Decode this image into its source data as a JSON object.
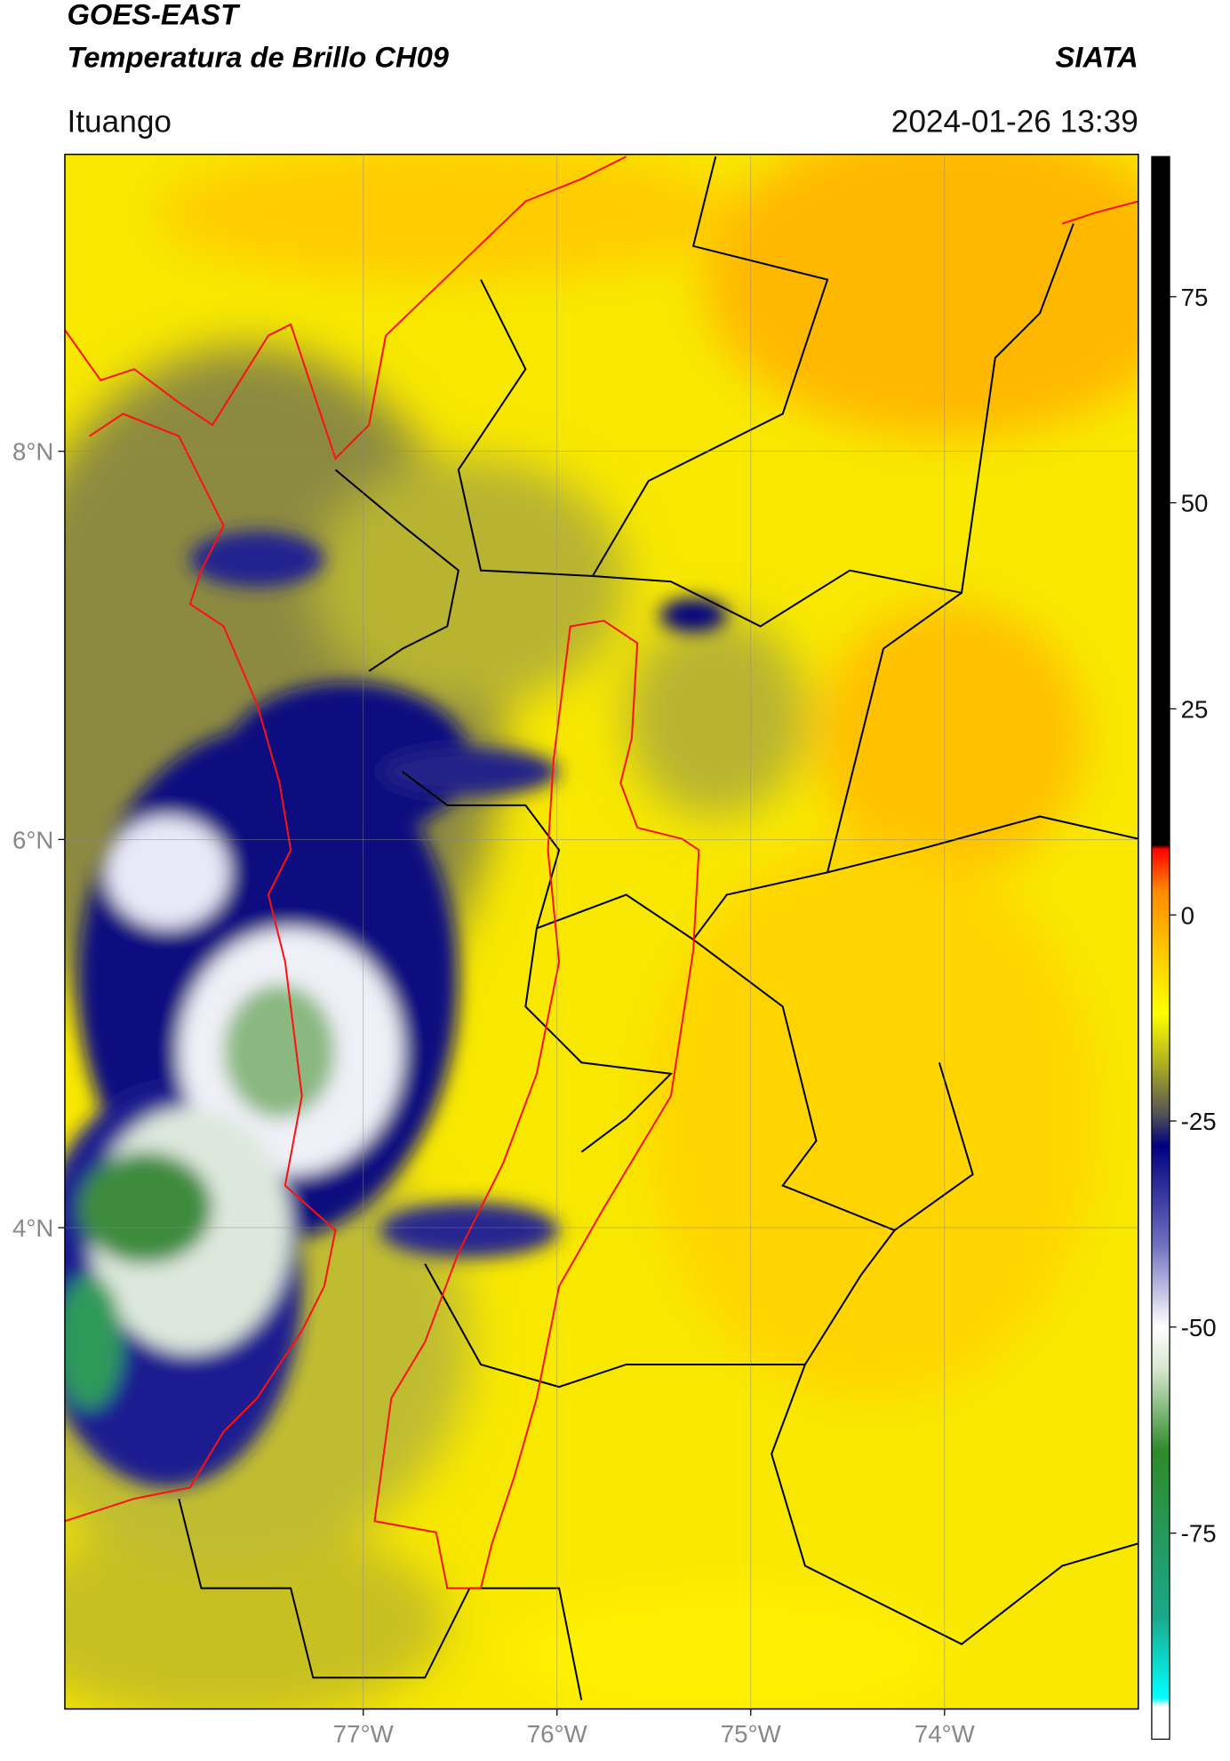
{
  "header": {
    "title": "GOES-EAST",
    "subtitle": "Temperatura de Brillo CH09",
    "source": "SIATA",
    "location": "Ituango",
    "datetime": "2024-01-26 13:39"
  },
  "map": {
    "xlim": [
      -78.54,
      -73.0
    ],
    "ylim": [
      1.52,
      9.53
    ],
    "xticks": [
      {
        "value": -77,
        "label": "77°W"
      },
      {
        "value": -76,
        "label": "76°W"
      },
      {
        "value": -75,
        "label": "75°W"
      },
      {
        "value": -74,
        "label": "74°W"
      }
    ],
    "yticks": [
      {
        "value": 8,
        "label": "8°N"
      },
      {
        "value": 6,
        "label": "6°N"
      },
      {
        "value": 4,
        "label": "4°N"
      }
    ],
    "grid": true
  },
  "colorbar": {
    "ylim": [
      -100,
      92
    ],
    "yticks": [
      75,
      50,
      25,
      0,
      -25,
      -50,
      -75
    ],
    "stops": [
      {
        "value": -100,
        "color": "#ffffff"
      },
      {
        "value": -96,
        "color": "#ffffff"
      },
      {
        "value": -95,
        "color": "#00ffff"
      },
      {
        "value": -85,
        "color": "#1aa88a"
      },
      {
        "value": -65,
        "color": "#2f8a2a"
      },
      {
        "value": -55,
        "color": "#d8e8d0"
      },
      {
        "value": -50,
        "color": "#ffffff"
      },
      {
        "value": -40,
        "color": "#7070c0"
      },
      {
        "value": -28,
        "color": "#000080"
      },
      {
        "value": -24,
        "color": "#555555"
      },
      {
        "value": -18,
        "color": "#b0b020"
      },
      {
        "value": -12,
        "color": "#ffff00"
      },
      {
        "value": -5,
        "color": "#ffcc00"
      },
      {
        "value": 3,
        "color": "#ff8800"
      },
      {
        "value": 8,
        "color": "#ff0000"
      },
      {
        "value": 8.5,
        "color": "#000000"
      },
      {
        "value": 92,
        "color": "#000000"
      }
    ]
  }
}
